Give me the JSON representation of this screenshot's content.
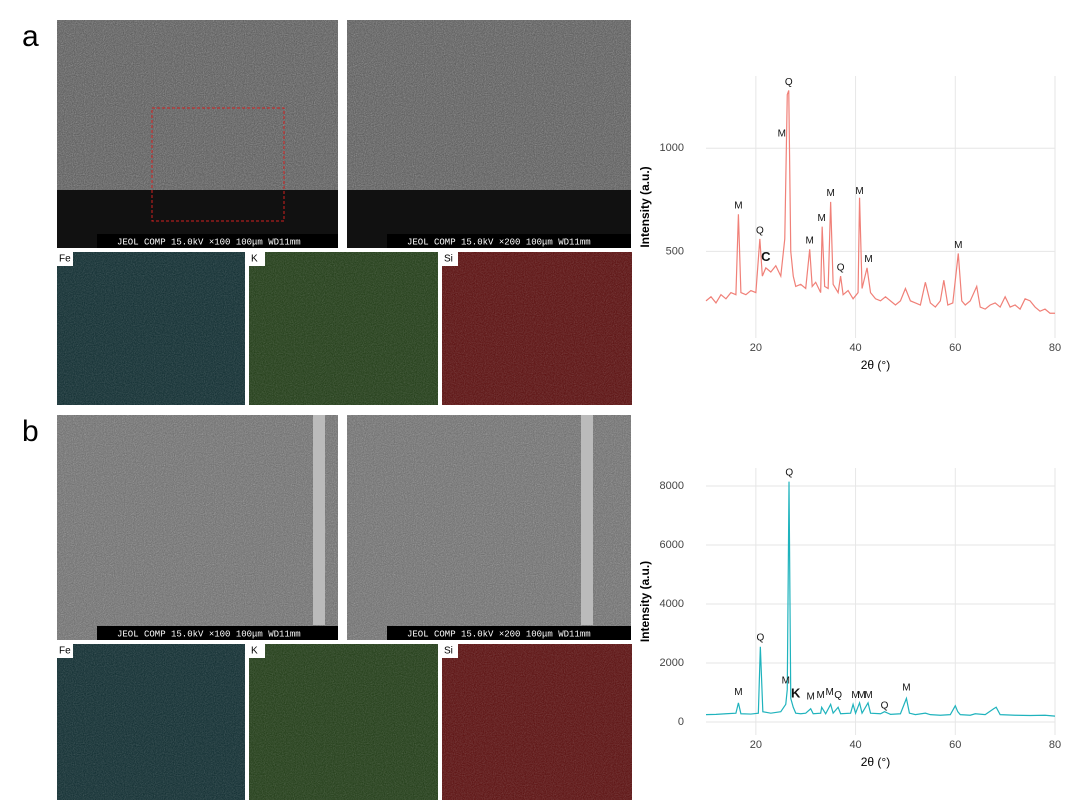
{
  "panels": [
    {
      "label": "a",
      "sem": [
        "JEOL COMP  15.0kV    ×100   100μm WD11mm",
        "JEOL COMP  15.0kV    ×200   100μm WD11mm"
      ],
      "maps": [
        "Fe",
        "K",
        "Si"
      ]
    },
    {
      "label": "b",
      "sem": [
        "JEOL COMP  15.0kV    ×100   100μm WD11mm",
        "JEOL COMP  15.0kV    ×200   100μm WD11mm"
      ],
      "maps": [
        "Fe",
        "K",
        "Si"
      ]
    }
  ],
  "chart_data": [
    {
      "type": "line",
      "color": "#f08078",
      "x_label": "2θ (°)",
      "y_label": "Intensity (a.u.)",
      "xlim": [
        10,
        80
      ],
      "ylim": [
        80,
        1350
      ],
      "xticks": [
        20,
        40,
        60,
        80
      ],
      "yticks": [
        500,
        1000
      ],
      "grid": true,
      "x": [
        10,
        11,
        12,
        13,
        14,
        15,
        16,
        16.5,
        17,
        18,
        19,
        20,
        20.8,
        21.3,
        22,
        23,
        24,
        25,
        25.8,
        26.3,
        26.6,
        27,
        27.5,
        28,
        29,
        30,
        30.8,
        31.3,
        32,
        33,
        33.3,
        33.8,
        34.5,
        35,
        35.5,
        36.5,
        37,
        37.5,
        38.5,
        39.5,
        40.5,
        40.8,
        41.3,
        42.3,
        43,
        44,
        45,
        46,
        47,
        48,
        49,
        50,
        51,
        52,
        53,
        54,
        55,
        56,
        57,
        57.7,
        58.5,
        59.5,
        60.6,
        61.3,
        62,
        63,
        64.3,
        65,
        66,
        67,
        68,
        69,
        70,
        71,
        72,
        73,
        74,
        75,
        76,
        77,
        78,
        79,
        80
      ],
      "values": [
        260,
        280,
        250,
        290,
        270,
        300,
        290,
        680,
        300,
        290,
        310,
        300,
        560,
        380,
        420,
        400,
        430,
        380,
        560,
        1260,
        1280,
        500,
        380,
        330,
        340,
        320,
        510,
        330,
        350,
        300,
        620,
        330,
        320,
        740,
        340,
        300,
        380,
        290,
        310,
        270,
        300,
        760,
        320,
        420,
        300,
        270,
        260,
        280,
        260,
        240,
        260,
        320,
        260,
        250,
        240,
        350,
        250,
        230,
        260,
        360,
        240,
        250,
        490,
        260,
        240,
        260,
        330,
        230,
        220,
        240,
        250,
        230,
        280,
        230,
        240,
        220,
        270,
        260,
        230,
        210,
        220,
        200,
        200
      ],
      "annotations": [
        {
          "text": "M",
          "x": 16.5,
          "y": 720
        },
        {
          "text": "Q",
          "x": 20.8,
          "y": 600
        },
        {
          "text": "C",
          "x": 22,
          "y": 470,
          "bold": true
        },
        {
          "text": "M",
          "x": 25.2,
          "y": 1070
        },
        {
          "text": "Q",
          "x": 26.6,
          "y": 1320
        },
        {
          "text": "M",
          "x": 30.8,
          "y": 550
        },
        {
          "text": "M",
          "x": 33.2,
          "y": 660
        },
        {
          "text": "M",
          "x": 35,
          "y": 780
        },
        {
          "text": "Q",
          "x": 37,
          "y": 420
        },
        {
          "text": "M",
          "x": 40.8,
          "y": 790
        },
        {
          "text": "M",
          "x": 42.6,
          "y": 460
        },
        {
          "text": "M",
          "x": 60.6,
          "y": 530
        }
      ]
    },
    {
      "type": "line",
      "color": "#1fb3bd",
      "x_label": "2θ (°)",
      "y_label": "Intensity (a.u.)",
      "xlim": [
        10,
        80
      ],
      "ylim": [
        -440,
        8610
      ],
      "xticks": [
        20,
        40,
        60,
        80
      ],
      "yticks": [
        0,
        2000,
        4000,
        6000,
        8000
      ],
      "grid": true,
      "x": [
        10,
        12,
        14,
        16,
        16.5,
        17,
        19,
        20.5,
        20.9,
        21.4,
        23,
        25,
        26,
        26.3,
        26.65,
        27,
        27.5,
        28,
        29,
        30,
        31,
        31.5,
        33,
        33.2,
        34,
        35,
        35.5,
        36.5,
        37,
        39,
        39.5,
        40,
        40.8,
        41.3,
        42.5,
        43,
        45,
        45.8,
        47,
        49,
        50.2,
        50.8,
        52,
        54,
        55,
        57,
        59,
        60,
        60.5,
        61,
        63,
        64,
        66,
        67.7,
        68.2,
        69,
        72,
        75,
        78,
        80
      ],
      "values": [
        250,
        260,
        280,
        300,
        650,
        280,
        270,
        300,
        2550,
        350,
        300,
        350,
        600,
        1100,
        8150,
        800,
        500,
        300,
        280,
        300,
        450,
        280,
        300,
        500,
        280,
        600,
        300,
        500,
        280,
        300,
        600,
        300,
        650,
        300,
        650,
        300,
        280,
        350,
        260,
        280,
        800,
        300,
        250,
        300,
        250,
        230,
        250,
        550,
        350,
        250,
        230,
        280,
        250,
        450,
        500,
        250,
        230,
        220,
        230,
        200
      ],
      "annotations": [
        {
          "text": "M",
          "x": 16.5,
          "y": 1000
        },
        {
          "text": "Q",
          "x": 20.9,
          "y": 2850
        },
        {
          "text": "Q",
          "x": 26.7,
          "y": 8450
        },
        {
          "text": "M",
          "x": 26,
          "y": 1400
        },
        {
          "text": "K",
          "x": 28,
          "y": 950,
          "bold": true
        },
        {
          "text": "M",
          "x": 31,
          "y": 850
        },
        {
          "text": "M",
          "x": 33,
          "y": 900
        },
        {
          "text": "M",
          "x": 34.8,
          "y": 1000
        },
        {
          "text": "Q",
          "x": 36.5,
          "y": 900
        },
        {
          "text": "M",
          "x": 40,
          "y": 900
        },
        {
          "text": "M",
          "x": 41.2,
          "y": 900
        },
        {
          "text": "M",
          "x": 42.6,
          "y": 900
        },
        {
          "text": "Q",
          "x": 45.8,
          "y": 550
        },
        {
          "text": "M",
          "x": 50.2,
          "y": 1150
        }
      ]
    }
  ]
}
